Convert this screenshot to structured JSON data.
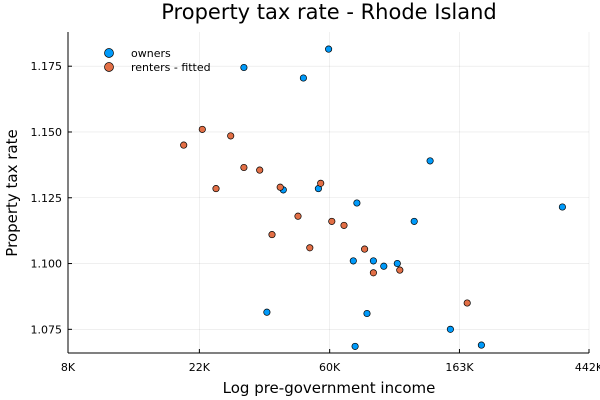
{
  "chart_data": {
    "type": "scatter",
    "title": "Property tax rate - Rhode Island",
    "xlabel": "Log pre-government income",
    "ylabel": "Property tax rate",
    "x_scale": "log",
    "xlim": [
      8000,
      442000
    ],
    "ylim": [
      1.066,
      1.188
    ],
    "x_ticks": [
      {
        "value": 8000,
        "label": "8K"
      },
      {
        "value": 22000,
        "label": "22K"
      },
      {
        "value": 60000,
        "label": "60K"
      },
      {
        "value": 163000,
        "label": "163K"
      },
      {
        "value": 442000,
        "label": "442K"
      }
    ],
    "y_ticks": [
      {
        "value": 1.075,
        "label": "1.075"
      },
      {
        "value": 1.1,
        "label": "1.100"
      },
      {
        "value": 1.125,
        "label": "1.125"
      },
      {
        "value": 1.15,
        "label": "1.150"
      },
      {
        "value": 1.175,
        "label": "1.175"
      }
    ],
    "grid": true,
    "legend_position": "top-left",
    "series": [
      {
        "name": "owners",
        "color": "#009AFA",
        "points": [
          {
            "x": 31000,
            "y": 1.1745
          },
          {
            "x": 49000,
            "y": 1.1705
          },
          {
            "x": 59500,
            "y": 1.1815
          },
          {
            "x": 42000,
            "y": 1.128
          },
          {
            "x": 55000,
            "y": 1.1285
          },
          {
            "x": 74000,
            "y": 1.123
          },
          {
            "x": 130000,
            "y": 1.139
          },
          {
            "x": 115000,
            "y": 1.116
          },
          {
            "x": 360000,
            "y": 1.1215
          },
          {
            "x": 72000,
            "y": 1.101
          },
          {
            "x": 84000,
            "y": 1.101
          },
          {
            "x": 91000,
            "y": 1.099
          },
          {
            "x": 101000,
            "y": 1.1
          },
          {
            "x": 37000,
            "y": 1.0815
          },
          {
            "x": 80000,
            "y": 1.081
          },
          {
            "x": 73000,
            "y": 1.0685
          },
          {
            "x": 152000,
            "y": 1.075
          },
          {
            "x": 193000,
            "y": 1.069
          }
        ]
      },
      {
        "name": "renters - fitted",
        "color": "#E26F46",
        "points": [
          {
            "x": 19500,
            "y": 1.145
          },
          {
            "x": 22500,
            "y": 1.151
          },
          {
            "x": 28000,
            "y": 1.1485
          },
          {
            "x": 25000,
            "y": 1.1285
          },
          {
            "x": 31000,
            "y": 1.1365
          },
          {
            "x": 35000,
            "y": 1.1355
          },
          {
            "x": 41000,
            "y": 1.129
          },
          {
            "x": 56000,
            "y": 1.1305
          },
          {
            "x": 38500,
            "y": 1.111
          },
          {
            "x": 47000,
            "y": 1.118
          },
          {
            "x": 51500,
            "y": 1.106
          },
          {
            "x": 61000,
            "y": 1.116
          },
          {
            "x": 67000,
            "y": 1.1145
          },
          {
            "x": 78500,
            "y": 1.1055
          },
          {
            "x": 84000,
            "y": 1.0965
          },
          {
            "x": 103000,
            "y": 1.0975
          },
          {
            "x": 173000,
            "y": 1.085
          }
        ]
      }
    ]
  }
}
